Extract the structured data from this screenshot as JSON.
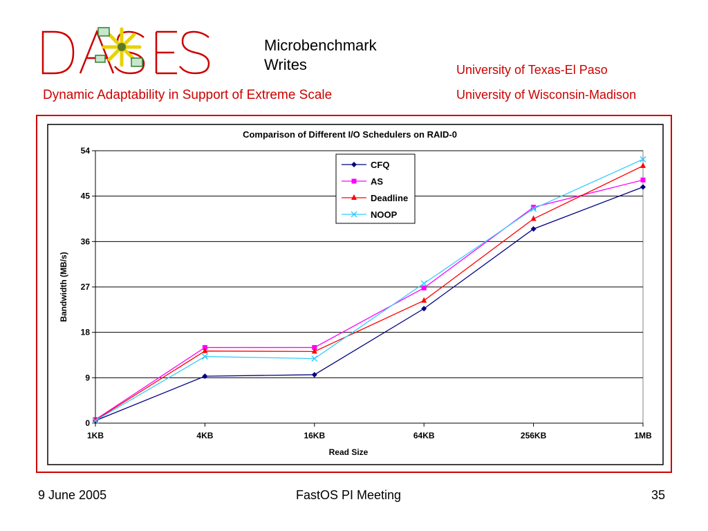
{
  "slide": {
    "title_line1": "Microbenchmark",
    "title_line2": "Writes",
    "subtitle": "Dynamic Adaptability in Support of Extreme Scale",
    "affiliation1": "University of Texas-El Paso",
    "affiliation2": "University of Wisconsin-Madison",
    "logo_text": "DASES"
  },
  "footer": {
    "date": "9 June 2005",
    "event": "FastOS PI Meeting",
    "page": "35"
  },
  "colors": {
    "accent": "#cc0000",
    "logo_green": "#2e7d32",
    "logo_yellow": "#e8d200"
  },
  "chart_data": {
    "type": "line",
    "title": "Comparison of Different I/O Schedulers on RAID-0",
    "xlabel": "Read Size",
    "ylabel": "Bandwidth (MB/s)",
    "categories": [
      "1KB",
      "4KB",
      "16KB",
      "64KB",
      "256KB",
      "1MB"
    ],
    "ylim": [
      0,
      54
    ],
    "yticks": [
      0,
      9,
      18,
      27,
      36,
      45,
      54
    ],
    "grid": true,
    "legend_position": "top-center",
    "series": [
      {
        "name": "CFQ",
        "color": "#000080",
        "marker": "diamond",
        "values": [
          0.5,
          9.3,
          9.6,
          22.7,
          38.5,
          46.8
        ]
      },
      {
        "name": "AS",
        "color": "#ff00ff",
        "marker": "square",
        "values": [
          0.7,
          15.0,
          15.0,
          26.8,
          42.8,
          48.2
        ]
      },
      {
        "name": "Deadline",
        "color": "#ff0000",
        "marker": "triangle",
        "values": [
          0.6,
          14.3,
          14.2,
          24.3,
          40.5,
          51.0
        ]
      },
      {
        "name": "NOOP",
        "color": "#33ccff",
        "marker": "x",
        "values": [
          0.5,
          13.2,
          12.8,
          27.7,
          42.5,
          52.3
        ]
      }
    ]
  }
}
